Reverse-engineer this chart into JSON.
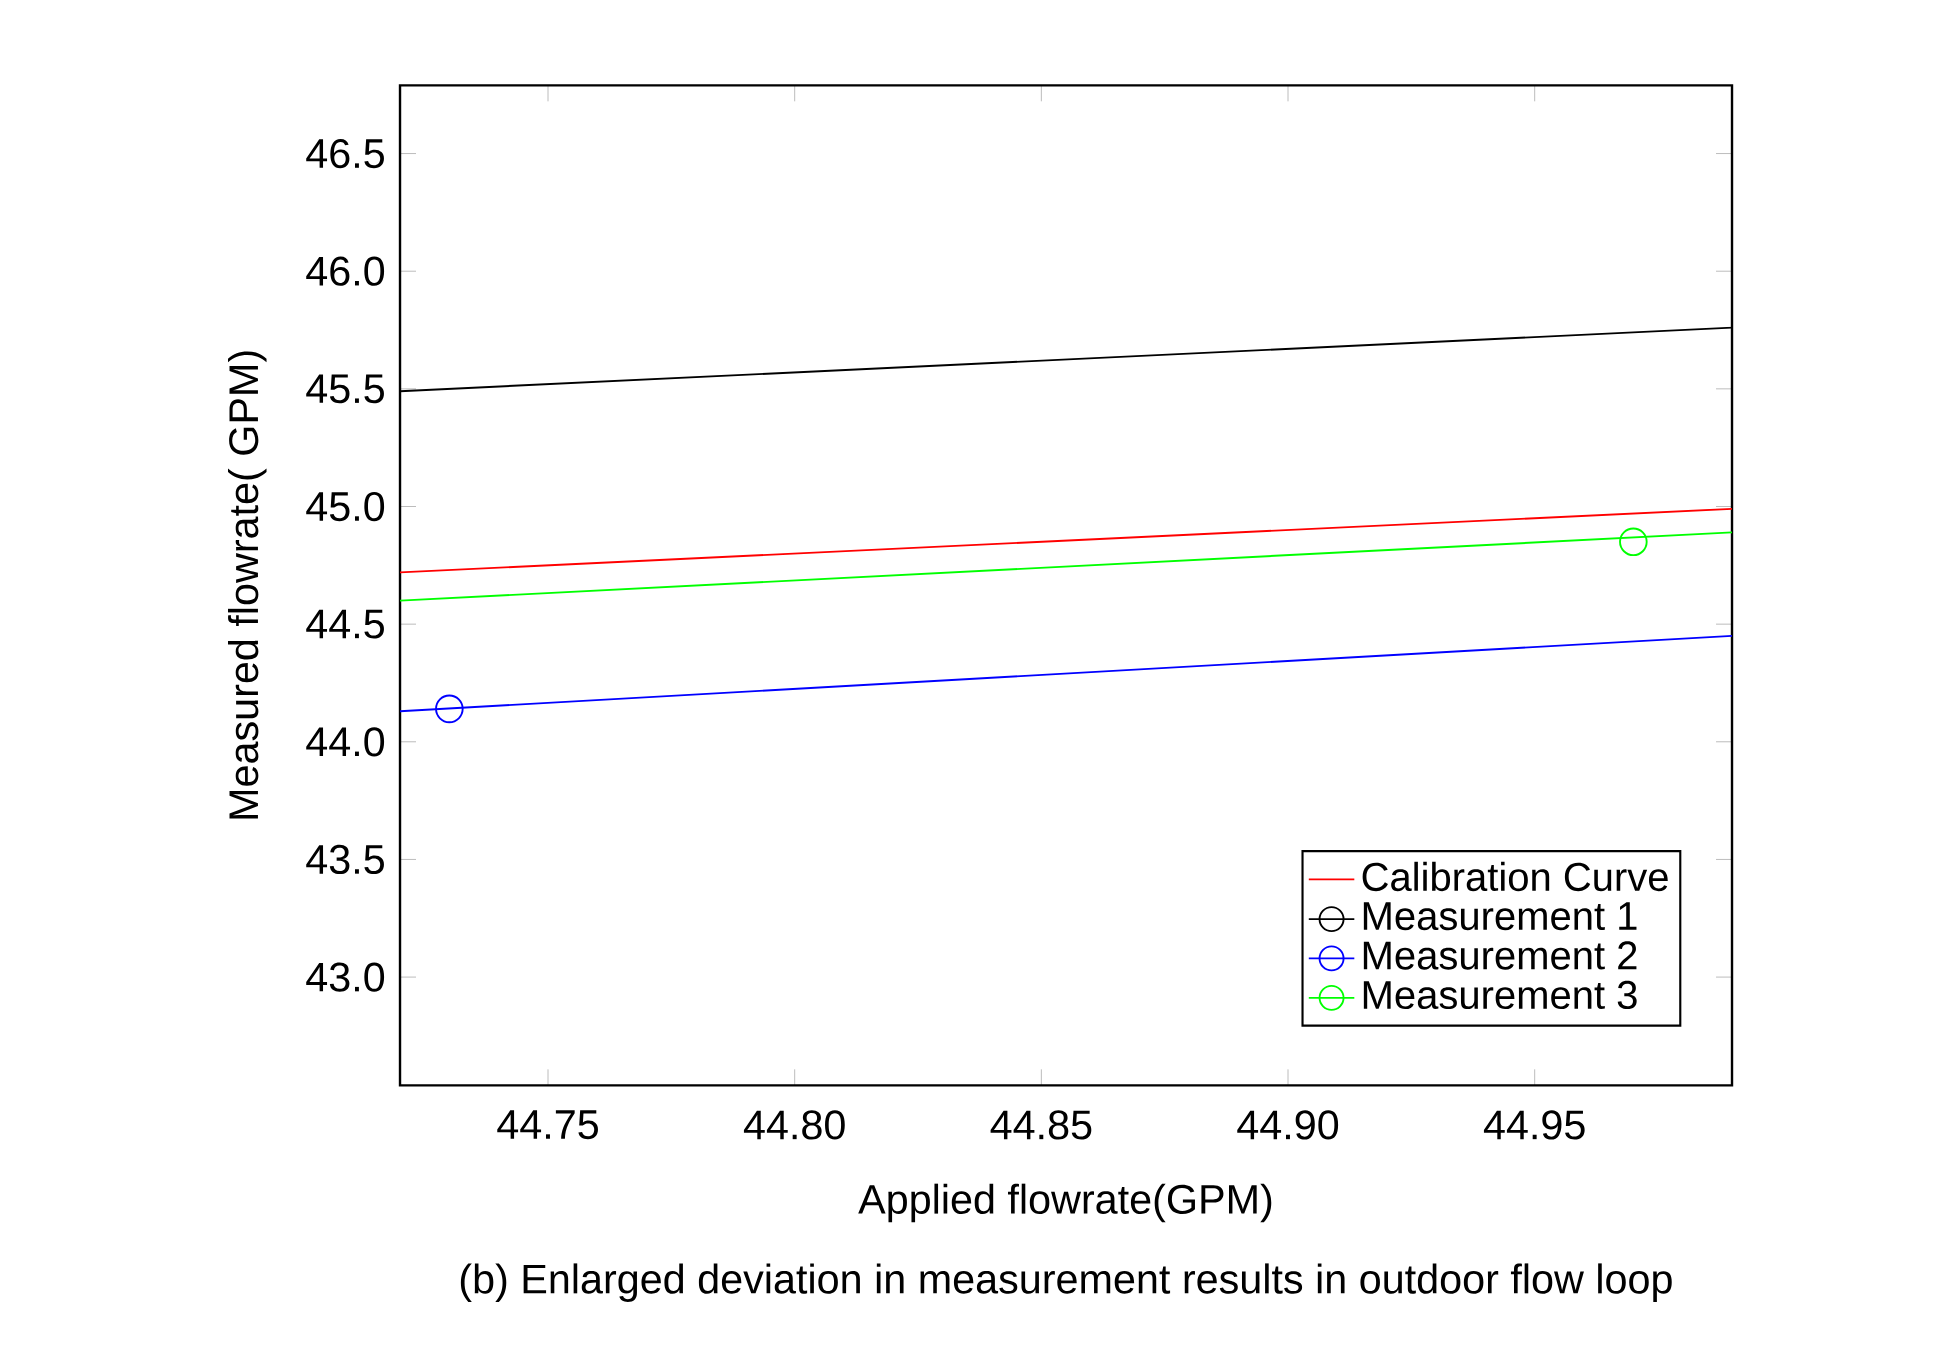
{
  "chart_data": {
    "type": "line",
    "title": "(b) Enlarged deviation in measurement results in outdoor flow loop",
    "xlabel": "Applied flowrate(GPM)",
    "ylabel": "Measured flowrate( GPM)",
    "xlim": [
      44.72,
      44.99
    ],
    "ylim": [
      42.54,
      46.79
    ],
    "xticks": [
      {
        "value": 44.75,
        "label": "44.75"
      },
      {
        "value": 44.8,
        "label": "44.80"
      },
      {
        "value": 44.85,
        "label": "44.85"
      },
      {
        "value": 44.9,
        "label": "44.90"
      },
      {
        "value": 44.95,
        "label": "44.95"
      }
    ],
    "yticks": [
      {
        "value": 43,
        "label": "43.0"
      },
      {
        "value": 43.5,
        "label": "43.5"
      },
      {
        "value": 44,
        "label": "44.0"
      },
      {
        "value": 44.5,
        "label": "44.5"
      },
      {
        "value": 45,
        "label": "45.0"
      },
      {
        "value": 45.5,
        "label": "45.5"
      },
      {
        "value": 46,
        "label": "46.0"
      },
      {
        "value": 46.5,
        "label": "46.5"
      }
    ],
    "legend": "bottom right",
    "grid": false,
    "series": [
      {
        "name": "Calibration Curve",
        "color": "#ff0000",
        "x": [
          44.72,
          44.99
        ],
        "values": [
          44.72,
          44.99
        ]
      },
      {
        "color": "#000000",
        "x": [
          44.72,
          44.99
        ],
        "values": [
          45.49,
          45.76
        ]
      },
      {
        "color": "#0000ff",
        "x": [
          44.72,
          44.99
        ],
        "values": [
          44.13,
          44.45
        ]
      },
      {
        "color": "#00ff00",
        "x": [
          44.72,
          44.99
        ],
        "values": [
          44.6,
          44.89
        ]
      },
      {
        "name": "Measurement 1",
        "type": "scatter",
        "color": "#000000",
        "marker": "circle"
      },
      {
        "name": "Measurement 2",
        "type": "scatter",
        "color": "#0000ff",
        "marker": "circle",
        "x": [
          44.73
        ],
        "values": [
          44.14
        ]
      },
      {
        "name": "Measurement 3",
        "type": "scatter",
        "color": "#00ff00",
        "marker": "circle",
        "x": [
          44.97
        ],
        "values": [
          44.85
        ]
      }
    ]
  }
}
